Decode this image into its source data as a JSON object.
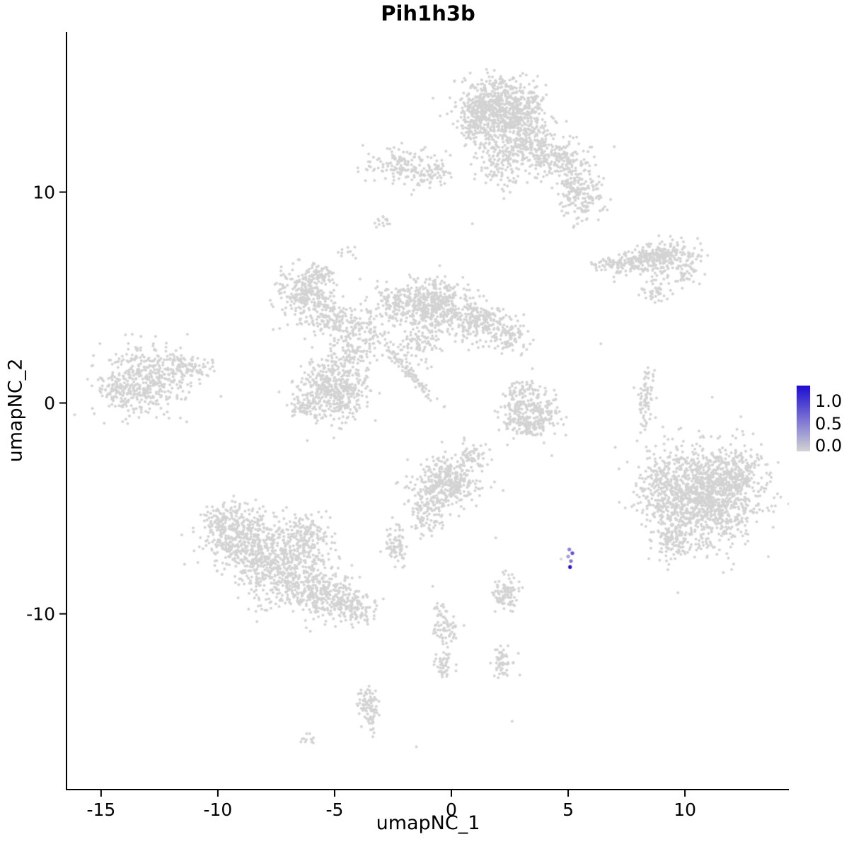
{
  "chart_data": {
    "type": "scatter",
    "title": "Pih1h3b",
    "xlabel": "umapNC_1",
    "ylabel": "umapNC_2",
    "x_domain": [
      -16.45,
      14.45
    ],
    "y_domain": [
      -18.3,
      17.6
    ],
    "x_ticks": [
      {
        "value": -15,
        "label": "-15"
      },
      {
        "value": -10,
        "label": "-10"
      },
      {
        "value": -5,
        "label": "-5"
      },
      {
        "value": 0,
        "label": "0"
      },
      {
        "value": 5,
        "label": "5"
      },
      {
        "value": 10,
        "label": "10"
      }
    ],
    "y_ticks": [
      {
        "value": 10,
        "label": "10"
      },
      {
        "value": 0,
        "label": "0"
      },
      {
        "value": -10,
        "label": "-10"
      }
    ],
    "grid": false,
    "point_color": "#d3d3d3",
    "point_radius": 2.0,
    "legend": {
      "position": "right",
      "ticks": [
        {
          "value": 1.0,
          "label": "1.0"
        },
        {
          "value": 0.5,
          "label": "0.5"
        },
        {
          "value": 0.0,
          "label": "0.0"
        }
      ],
      "bar_vmax": 1.35,
      "bar_vmin": -0.12,
      "color_vmax": 1.3,
      "low_color": "#d3d3d3",
      "high_color": "#1c0bd2"
    },
    "clusters": [
      {
        "x": 2.0,
        "y": 14.0,
        "sx": 0.85,
        "sy": 0.75,
        "n": 650
      },
      {
        "x": 1.0,
        "y": 13.2,
        "sx": 0.4,
        "sy": 0.6,
        "n": 120
      },
      {
        "x": 2.0,
        "y": 11.4,
        "sx": 0.45,
        "sy": 0.7,
        "n": 110
      },
      {
        "x": 3.3,
        "y": 12.3,
        "sx": 0.6,
        "sy": 0.6,
        "n": 200
      },
      {
        "x": 2.9,
        "y": 13.4,
        "sx": 0.5,
        "sy": 0.8,
        "n": 150
      },
      {
        "x": 4.6,
        "y": 11.5,
        "sx": 0.7,
        "sy": 0.45,
        "n": 180
      },
      {
        "x": 5.5,
        "y": 10.0,
        "sx": 0.5,
        "sy": 0.6,
        "n": 190
      },
      {
        "x": -1.9,
        "y": 11.2,
        "sx": 0.85,
        "sy": 0.42,
        "n": 170,
        "r": -0.15
      },
      {
        "x": -0.6,
        "y": 11.0,
        "sx": 0.3,
        "sy": 0.3,
        "n": 30
      },
      {
        "x": -2.9,
        "y": 8.55,
        "sx": 0.22,
        "sy": 0.18,
        "n": 14
      },
      {
        "x": -4.5,
        "y": 7.2,
        "sx": 0.2,
        "sy": 0.15,
        "n": 10
      },
      {
        "x": 9.0,
        "y": 6.9,
        "sx": 0.75,
        "sy": 0.38,
        "n": 260,
        "r": 0.1
      },
      {
        "x": 7.3,
        "y": 6.6,
        "sx": 0.7,
        "sy": 0.25,
        "n": 110,
        "r": 0.15
      },
      {
        "x": 8.7,
        "y": 5.3,
        "sx": 0.35,
        "sy": 0.3,
        "n": 45
      },
      {
        "x": 10.0,
        "y": 6.2,
        "sx": 0.3,
        "sy": 0.3,
        "n": 40
      },
      {
        "x": -6.3,
        "y": 5.2,
        "sx": 0.6,
        "sy": 0.6,
        "n": 260
      },
      {
        "x": -5.6,
        "y": 6.1,
        "sx": 0.3,
        "sy": 0.3,
        "n": 50
      },
      {
        "x": -5.1,
        "y": 4.0,
        "sx": 0.5,
        "sy": 0.5,
        "n": 130
      },
      {
        "x": -3.8,
        "y": 3.3,
        "sx": 0.55,
        "sy": 0.6,
        "n": 120
      },
      {
        "x": -2.2,
        "y": 4.7,
        "sx": 0.6,
        "sy": 0.5,
        "n": 170
      },
      {
        "x": -0.7,
        "y": 4.6,
        "sx": 0.6,
        "sy": 0.65,
        "n": 380
      },
      {
        "x": 1.2,
        "y": 3.9,
        "sx": 0.55,
        "sy": 0.5,
        "n": 240
      },
      {
        "x": 2.5,
        "y": 3.2,
        "sx": 0.35,
        "sy": 0.4,
        "n": 90
      },
      {
        "x": -1.4,
        "y": 2.8,
        "sx": 0.5,
        "sy": 0.4,
        "n": 90
      },
      {
        "x": -1.75,
        "y": 1.4,
        "sx": 0.75,
        "sy": 0.12,
        "n": 90,
        "r": -0.9
      },
      {
        "x": -5.1,
        "y": 0.6,
        "sx": 0.75,
        "sy": 0.7,
        "n": 430
      },
      {
        "x": -4.4,
        "y": 2.2,
        "sx": 0.4,
        "sy": 0.45,
        "n": 70
      },
      {
        "x": -6.3,
        "y": -0.2,
        "sx": 0.35,
        "sy": 0.3,
        "n": 60
      },
      {
        "x": -13.1,
        "y": 1.1,
        "sx": 0.95,
        "sy": 0.8,
        "n": 430
      },
      {
        "x": -11.3,
        "y": 1.7,
        "sx": 0.5,
        "sy": 0.35,
        "n": 90
      },
      {
        "x": -14.2,
        "y": 0.6,
        "sx": 0.35,
        "sy": 0.4,
        "n": 60
      },
      {
        "x": 8.3,
        "y": 0.2,
        "sx": 0.17,
        "sy": 0.85,
        "n": 75,
        "r": -0.1
      },
      {
        "x": 2.8,
        "y": -0.3,
        "sx": 0.35,
        "sy": 0.55,
        "n": 120
      },
      {
        "x": 3.9,
        "y": -0.4,
        "sx": 0.38,
        "sy": 0.5,
        "n": 120
      },
      {
        "x": 3.3,
        "y": -1.1,
        "sx": 0.45,
        "sy": 0.25,
        "n": 70
      },
      {
        "x": 3.3,
        "y": 0.7,
        "sx": 0.4,
        "sy": 0.3,
        "n": 35
      },
      {
        "x": 10.9,
        "y": -4.3,
        "sx": 1.15,
        "sy": 1.15,
        "n": 1250
      },
      {
        "x": 9.0,
        "y": -4.2,
        "sx": 0.55,
        "sy": 0.9,
        "n": 180
      },
      {
        "x": 9.7,
        "y": -6.5,
        "sx": 0.5,
        "sy": 0.45,
        "n": 120
      },
      {
        "x": 12.3,
        "y": -3.2,
        "sx": 0.5,
        "sy": 0.5,
        "n": 120
      },
      {
        "x": -0.2,
        "y": -3.8,
        "sx": 0.7,
        "sy": 0.65,
        "n": 380
      },
      {
        "x": 0.8,
        "y": -2.7,
        "sx": 0.35,
        "sy": 0.3,
        "n": 60
      },
      {
        "x": -1.2,
        "y": -5.3,
        "sx": 0.35,
        "sy": 0.5,
        "n": 80
      },
      {
        "x": -2.4,
        "y": -6.8,
        "sx": 0.28,
        "sy": 0.45,
        "n": 75
      },
      {
        "x": -8.9,
        "y": -6.4,
        "sx": 0.85,
        "sy": 0.75,
        "n": 420
      },
      {
        "x": -7.3,
        "y": -7.7,
        "sx": 0.95,
        "sy": 0.9,
        "n": 520
      },
      {
        "x": -6.2,
        "y": -6.2,
        "sx": 0.5,
        "sy": 0.5,
        "n": 120
      },
      {
        "x": -5.6,
        "y": -8.9,
        "sx": 0.7,
        "sy": 0.6,
        "n": 260
      },
      {
        "x": -4.3,
        "y": -9.7,
        "sx": 0.5,
        "sy": 0.45,
        "n": 150
      },
      {
        "x": -9.9,
        "y": -5.6,
        "sx": 0.4,
        "sy": 0.4,
        "n": 70
      },
      {
        "x": 2.3,
        "y": -9.0,
        "sx": 0.3,
        "sy": 0.45,
        "n": 95
      },
      {
        "x": -0.2,
        "y": -10.7,
        "sx": 0.3,
        "sy": 0.35,
        "n": 55
      },
      {
        "x": -0.35,
        "y": -12.3,
        "sx": 0.22,
        "sy": 0.4,
        "n": 45
      },
      {
        "x": -0.5,
        "y": -9.6,
        "sx": 0.18,
        "sy": 0.18,
        "n": 14
      },
      {
        "x": 2.2,
        "y": -12.3,
        "sx": 0.25,
        "sy": 0.35,
        "n": 55
      },
      {
        "x": -3.55,
        "y": -14.4,
        "sx": 0.22,
        "sy": 0.6,
        "n": 90,
        "r": 0.15
      },
      {
        "x": -6.1,
        "y": -15.9,
        "sx": 0.22,
        "sy": 0.1,
        "n": 12
      }
    ],
    "singles": [
      [
        0.9,
        8.5
      ],
      [
        6.4,
        2.8
      ],
      [
        4.3,
        -2.5
      ],
      [
        1.7,
        -4.0
      ],
      [
        1.9,
        -6.4
      ],
      [
        -0.8,
        -8.7
      ],
      [
        4.7,
        -7.4
      ],
      [
        9.7,
        -9.0
      ],
      [
        12.0,
        -7.9
      ],
      [
        2.6,
        -15.1
      ],
      [
        -1.5,
        -16.3
      ]
    ],
    "expressing_cells": [
      {
        "x": 5.05,
        "y": -6.95,
        "value": 0.5
      },
      {
        "x": 5.18,
        "y": -7.12,
        "value": 0.85
      },
      {
        "x": 5.0,
        "y": -7.28,
        "value": 0.35
      },
      {
        "x": 5.12,
        "y": -7.5,
        "value": 0.6
      },
      {
        "x": 5.08,
        "y": -7.78,
        "value": 1.25
      }
    ]
  }
}
